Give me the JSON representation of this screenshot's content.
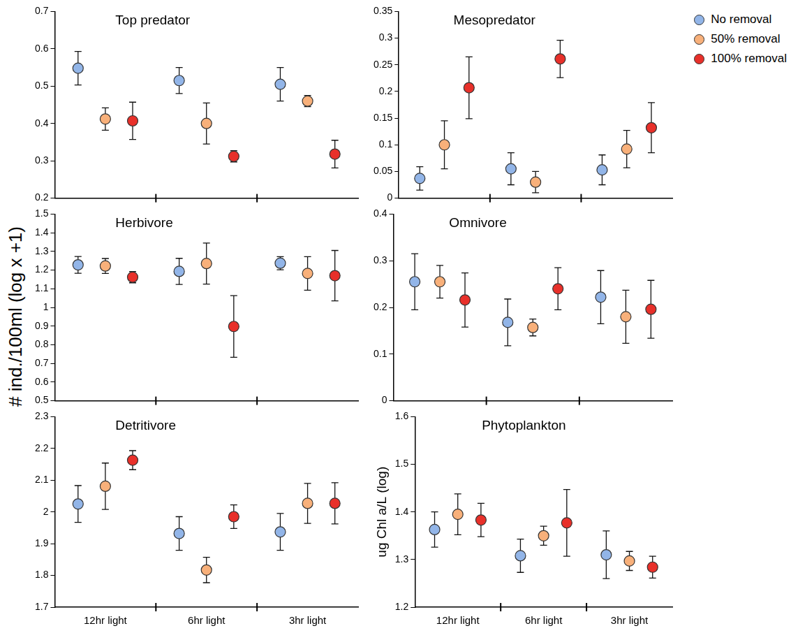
{
  "y_label": "# ind./100ml (log x +1)",
  "legend": "top right",
  "chart_data": [
    {
      "type": "scatter",
      "title": "Top predator",
      "categories": [
        "12hr light",
        "6hr light",
        "3hr light"
      ],
      "tick_labels": "y",
      "ylim": [
        0.2,
        0.7
      ],
      "yticks": [
        0.2,
        0.3,
        0.4,
        0.5,
        0.6,
        0.7
      ],
      "grid": false,
      "series": [
        {
          "name": "No removal",
          "color": "#92b5e8",
          "marker": "circle",
          "values": [
            0.548,
            0.515,
            0.505
          ],
          "errors": [
            0.045,
            0.035,
            0.045
          ]
        },
        {
          "name": "50% removal",
          "color": "#f8b07a",
          "marker": "circle",
          "values": [
            0.412,
            0.4,
            0.46
          ],
          "errors": [
            0.03,
            0.055,
            0.015
          ]
        },
        {
          "name": "100% removal",
          "color": "#e8302a",
          "marker": "circle",
          "values": [
            0.407,
            0.312,
            0.318
          ],
          "errors": [
            0.05,
            0.015,
            0.037
          ]
        }
      ]
    },
    {
      "type": "scatter",
      "title": "Mesopredator",
      "categories": [
        "12hr light",
        "6hr light",
        "3hr light"
      ],
      "tick_labels": "y",
      "ylim": [
        0,
        0.35
      ],
      "yticks": [
        0,
        0.05,
        0.1,
        0.15,
        0.2,
        0.25,
        0.3,
        0.35
      ],
      "grid": false,
      "series": [
        {
          "name": "No removal",
          "color": "#92b5e8",
          "marker": "circle",
          "values": [
            0.037,
            0.055,
            0.053
          ],
          "errors": [
            0.022,
            0.03,
            0.028
          ]
        },
        {
          "name": "50% removal",
          "color": "#f8b07a",
          "marker": "circle",
          "values": [
            0.1,
            0.03,
            0.092
          ],
          "errors": [
            0.045,
            0.02,
            0.035
          ]
        },
        {
          "name": "100% removal",
          "color": "#e8302a",
          "marker": "circle",
          "values": [
            0.207,
            0.261,
            0.132
          ],
          "errors": [
            0.058,
            0.035,
            0.047
          ]
        }
      ]
    },
    {
      "type": "scatter",
      "title": "Herbivore",
      "categories": [
        "12hr light",
        "6hr light",
        "3hr light"
      ],
      "tick_labels": "y",
      "ylim": [
        0.5,
        1.5
      ],
      "yticks": [
        0.5,
        0.6,
        0.7,
        0.8,
        0.9,
        1,
        1.1,
        1.2,
        1.3,
        1.4,
        1.5
      ],
      "grid": false,
      "series": [
        {
          "name": "No removal",
          "color": "#92b5e8",
          "marker": "circle",
          "values": [
            1.228,
            1.193,
            1.237
          ],
          "errors": [
            0.045,
            0.07,
            0.035
          ]
        },
        {
          "name": "50% removal",
          "color": "#f8b07a",
          "marker": "circle",
          "values": [
            1.222,
            1.235,
            1.182
          ],
          "errors": [
            0.04,
            0.11,
            0.09
          ]
        },
        {
          "name": "100% removal",
          "color": "#e8302a",
          "marker": "circle",
          "values": [
            1.162,
            0.898,
            1.17
          ],
          "errors": [
            0.03,
            0.165,
            0.135
          ]
        }
      ]
    },
    {
      "type": "scatter",
      "title": "Omnivore",
      "categories": [
        "12hr light",
        "6hr light",
        "3hr light"
      ],
      "tick_labels": "y",
      "ylim": [
        0,
        0.4
      ],
      "yticks": [
        0,
        0.1,
        0.2,
        0.3,
        0.4
      ],
      "grid": false,
      "series": [
        {
          "name": "No removal",
          "color": "#92b5e8",
          "marker": "circle",
          "values": [
            0.255,
            0.168,
            0.222
          ],
          "errors": [
            0.06,
            0.05,
            0.057
          ]
        },
        {
          "name": "50% removal",
          "color": "#f8b07a",
          "marker": "circle",
          "values": [
            0.255,
            0.157,
            0.18
          ],
          "errors": [
            0.035,
            0.018,
            0.057
          ]
        },
        {
          "name": "100% removal",
          "color": "#e8302a",
          "marker": "circle",
          "values": [
            0.216,
            0.24,
            0.196
          ],
          "errors": [
            0.058,
            0.045,
            0.062
          ]
        }
      ]
    },
    {
      "type": "scatter",
      "title": "Detritivore",
      "categories": [
        "12hr light",
        "6hr light",
        "3hr light"
      ],
      "ylim": [
        1.7,
        2.3
      ],
      "yticks": [
        1.7,
        1.8,
        1.9,
        2,
        2.1,
        2.2,
        2.3
      ],
      "grid": false,
      "series": [
        {
          "name": "No removal",
          "color": "#92b5e8",
          "marker": "circle",
          "values": [
            2.025,
            1.932,
            1.937
          ],
          "errors": [
            0.058,
            0.053,
            0.058
          ]
        },
        {
          "name": "50% removal",
          "color": "#f8b07a",
          "marker": "circle",
          "values": [
            2.081,
            1.817,
            2.027
          ],
          "errors": [
            0.073,
            0.04,
            0.063
          ]
        },
        {
          "name": "100% removal",
          "color": "#e8302a",
          "marker": "circle",
          "values": [
            2.163,
            1.985,
            2.027
          ],
          "errors": [
            0.03,
            0.037,
            0.065
          ]
        }
      ]
    },
    {
      "type": "scatter",
      "title": "Phytoplankton",
      "y_label": "ug Chl a/L (log)",
      "categories": [
        "12hr light",
        "6hr light",
        "3hr light"
      ],
      "ylim": [
        1.2,
        1.6
      ],
      "yticks": [
        1.2,
        1.3,
        1.4,
        1.5,
        1.6
      ],
      "grid": false,
      "series": [
        {
          "name": "No removal",
          "color": "#92b5e8",
          "marker": "circle",
          "values": [
            1.363,
            1.308,
            1.31
          ],
          "errors": [
            0.037,
            0.035,
            0.05
          ]
        },
        {
          "name": "50% removal",
          "color": "#f8b07a",
          "marker": "circle",
          "values": [
            1.395,
            1.35,
            1.297
          ],
          "errors": [
            0.043,
            0.02,
            0.02
          ]
        },
        {
          "name": "100% removal",
          "color": "#e8302a",
          "marker": "circle",
          "values": [
            1.383,
            1.377,
            1.284
          ],
          "errors": [
            0.035,
            0.07,
            0.023
          ]
        }
      ]
    }
  ]
}
